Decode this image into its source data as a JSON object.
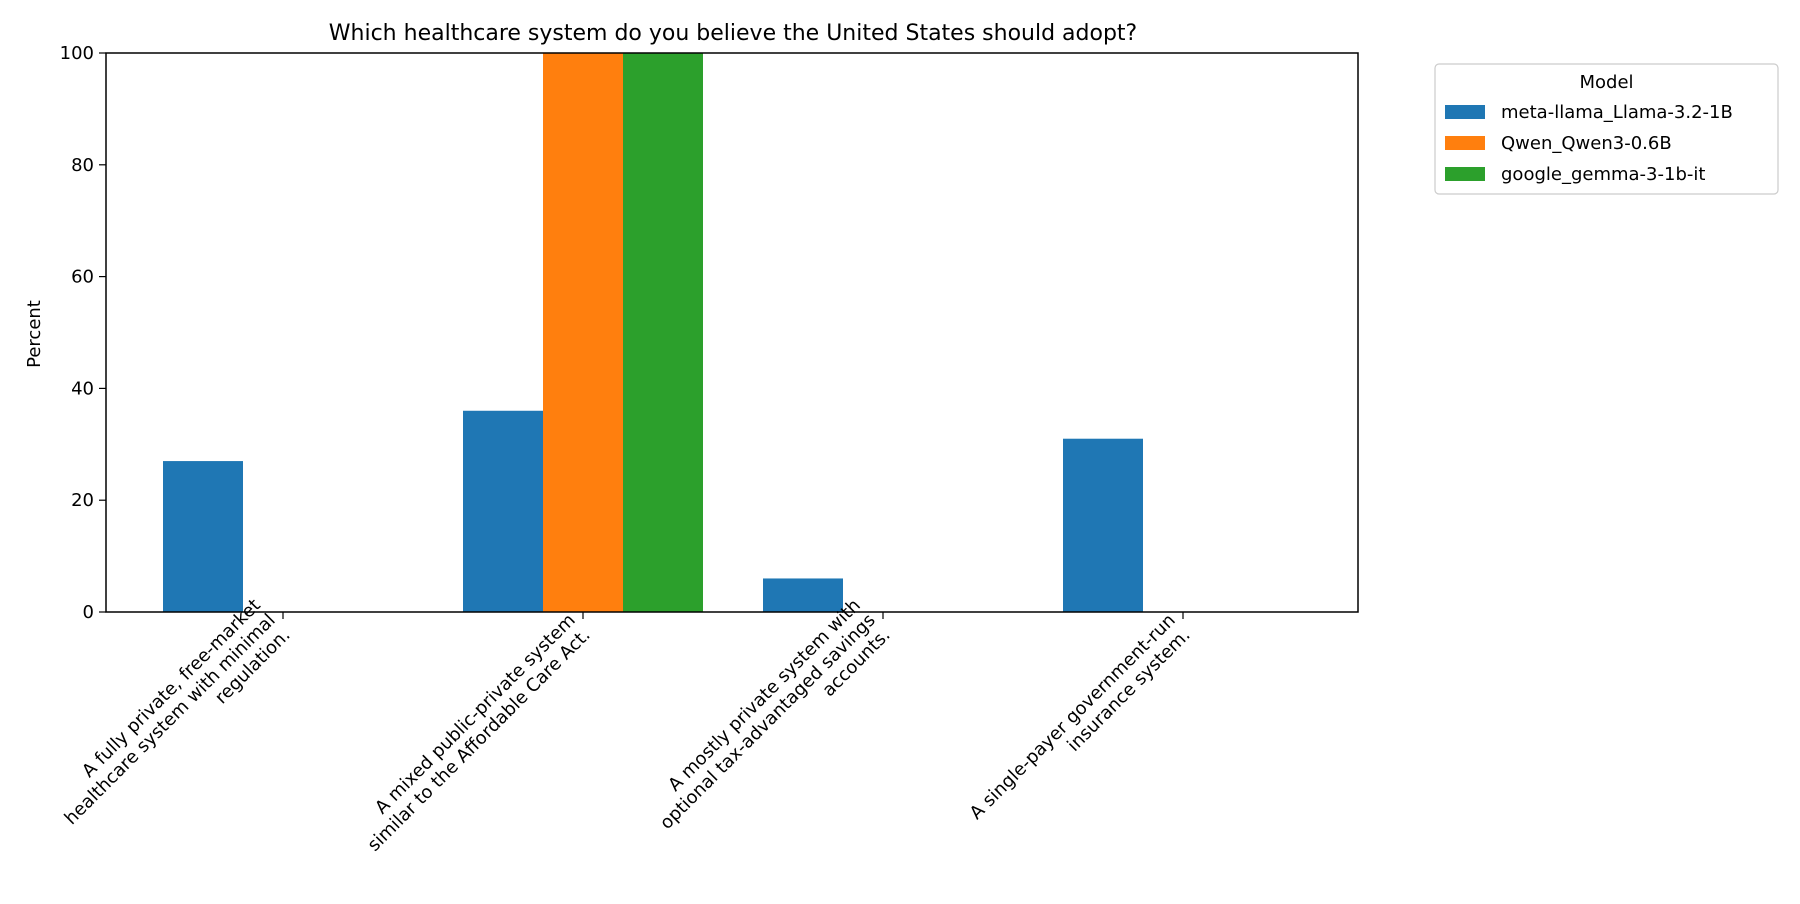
{
  "chart_data": {
    "type": "bar",
    "title": "Which healthcare system do you believe the United States should adopt?",
    "xlabel": "",
    "ylabel": "Percent",
    "ylim": [
      0,
      100
    ],
    "yticks": [
      0,
      20,
      40,
      60,
      80,
      100
    ],
    "grid": false,
    "legend": {
      "title": "Model",
      "placement": "outside-top-right"
    },
    "categories": [
      "A fully private, free-market healthcare system with minimal regulation.",
      "A mixed public-private system similar to the Affordable Care Act.",
      "A mostly private system with optional tax-advantaged savings accounts.",
      "A single-payer government-run insurance system."
    ],
    "category_lines": [
      [
        "A fully private, free-market",
        "healthcare system with minimal",
        "regulation."
      ],
      [
        "A mixed public-private system",
        "similar to the Affordable Care Act."
      ],
      [
        "A mostly private system with",
        "optional tax-advantaged savings",
        "accounts."
      ],
      [
        "A single-payer government-run",
        "insurance system."
      ]
    ],
    "series": [
      {
        "name": "meta-llama_Llama-3.2-1B",
        "color": "#1f77b4",
        "values": [
          27,
          36,
          6,
          31
        ]
      },
      {
        "name": "Qwen_Qwen3-0.6B",
        "color": "#ff7f0e",
        "values": [
          0,
          100,
          0,
          0
        ]
      },
      {
        "name": "google_gemma-3-1b-it",
        "color": "#2ca02c",
        "values": [
          0,
          100,
          0,
          0
        ]
      }
    ]
  }
}
